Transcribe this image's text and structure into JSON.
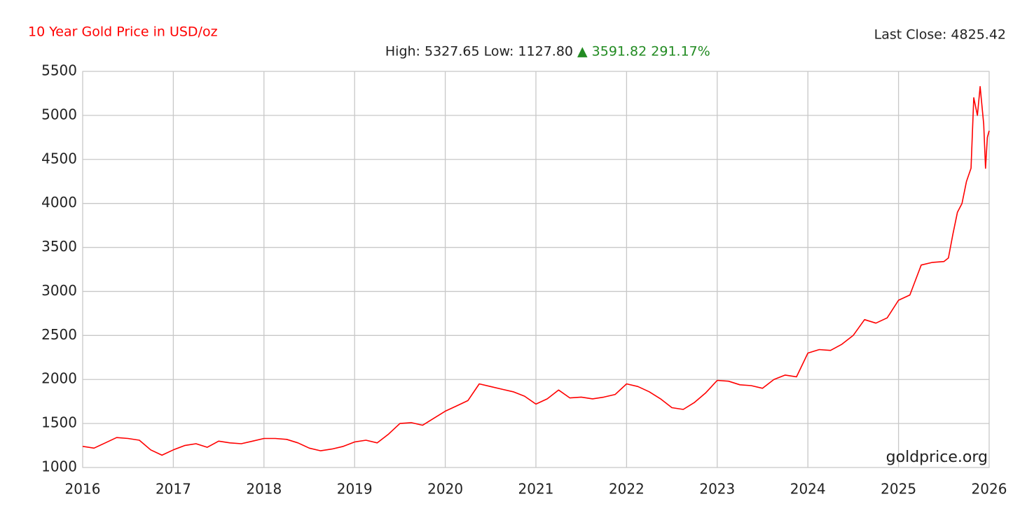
{
  "chart_data": {
    "type": "line",
    "title": "10 Year Gold Price in USD/oz",
    "subtitle": "High: 5327.65 Low: 1127.80",
    "change": "▲ 3591.82 291.17%",
    "last_close": "Last Close: 4825.42",
    "watermark": "goldprice.org",
    "x": [
      2016.0,
      2016.125,
      2016.25,
      2016.375,
      2016.5,
      2016.625,
      2016.75,
      2016.875,
      2017.0,
      2017.125,
      2017.25,
      2017.375,
      2017.5,
      2017.625,
      2017.75,
      2017.875,
      2018.0,
      2018.125,
      2018.25,
      2018.375,
      2018.5,
      2018.625,
      2018.75,
      2018.875,
      2019.0,
      2019.125,
      2019.25,
      2019.375,
      2019.5,
      2019.625,
      2019.75,
      2019.875,
      2020.0,
      2020.125,
      2020.25,
      2020.375,
      2020.5,
      2020.625,
      2020.75,
      2020.875,
      2021.0,
      2021.125,
      2021.25,
      2021.375,
      2021.5,
      2021.625,
      2021.75,
      2021.875,
      2022.0,
      2022.125,
      2022.25,
      2022.375,
      2022.5,
      2022.625,
      2022.75,
      2022.875,
      2023.0,
      2023.125,
      2023.25,
      2023.375,
      2023.5,
      2023.625,
      2023.75,
      2023.875,
      2024.0,
      2024.125,
      2024.25,
      2024.375,
      2024.5,
      2024.625,
      2024.75,
      2024.875,
      2025.0,
      2025.125,
      2025.25,
      2025.375,
      2025.5,
      2025.55,
      2025.6,
      2025.65,
      2025.7,
      2025.75,
      2025.8,
      2025.83,
      2025.87,
      2025.9,
      2025.94,
      2025.96,
      2025.98,
      2026.0
    ],
    "series": [
      {
        "name": "Gold",
        "color": "#ff0000",
        "values": [
          1240,
          1220,
          1280,
          1340,
          1330,
          1310,
          1200,
          1140,
          1200,
          1250,
          1270,
          1230,
          1300,
          1280,
          1270,
          1300,
          1330,
          1330,
          1320,
          1280,
          1220,
          1190,
          1210,
          1240,
          1290,
          1310,
          1280,
          1380,
          1500,
          1510,
          1480,
          1560,
          1640,
          1700,
          1760,
          1950,
          1920,
          1890,
          1860,
          1810,
          1720,
          1780,
          1880,
          1790,
          1800,
          1780,
          1800,
          1830,
          1950,
          1920,
          1860,
          1780,
          1680,
          1660,
          1740,
          1850,
          1990,
          1980,
          1940,
          1930,
          1900,
          2000,
          2050,
          2030,
          2300,
          2340,
          2330,
          2400,
          2500,
          2680,
          2640,
          2700,
          2900,
          2960,
          3300,
          3330,
          3340,
          3380,
          3650,
          3900,
          4000,
          4250,
          4400,
          5200,
          5000,
          5327.65,
          4900,
          4400,
          4750,
          4825.42
        ]
      }
    ],
    "xlim": [
      2016,
      2026
    ],
    "xticks": [
      2016,
      2017,
      2018,
      2019,
      2020,
      2021,
      2022,
      2023,
      2024,
      2025,
      2026
    ],
    "ylim": [
      1000,
      5500
    ],
    "yticks": [
      1000,
      1500,
      2000,
      2500,
      3000,
      3500,
      4000,
      4500,
      5000,
      5500
    ],
    "grid": true
  }
}
